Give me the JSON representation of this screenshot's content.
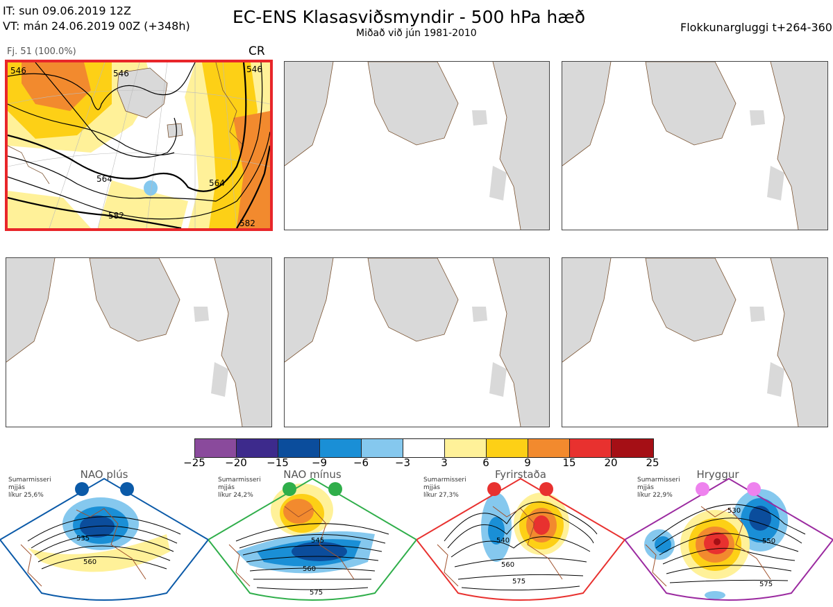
{
  "header": {
    "init_time": "IT: sun 09.06.2019 12Z",
    "valid_time": "VT: mán 24.06.2019 00Z  (+348h)",
    "title": "EC-ENS Klasasviðsmyndir - 500 hPa hæð",
    "subtitle": "Miðað við jún 1981-2010",
    "window": "Flokkunargluggi t+264-360"
  },
  "panels": [
    {
      "label": "Fj. 51 (100.0%)",
      "tag": "CR",
      "selected": true,
      "contour_labels": [
        "546",
        "564",
        "582",
        "546",
        "564",
        "582",
        "546"
      ]
    },
    {
      "label": "",
      "tag": "",
      "selected": false
    },
    {
      "label": "",
      "tag": "",
      "selected": false
    },
    {
      "label": "",
      "tag": "",
      "selected": false
    },
    {
      "label": "",
      "tag": "",
      "selected": false
    },
    {
      "label": "",
      "tag": "",
      "selected": false
    }
  ],
  "colorbar": {
    "ticks": [
      "−25",
      "−20",
      "−15",
      "−9",
      "−6",
      "−3",
      "3",
      "6",
      "9",
      "15",
      "20",
      "25"
    ],
    "colors": [
      "#8a4a9c",
      "#3d2a8c",
      "#0b4d9c",
      "#1a8fd6",
      "#85c8ee",
      "#ffffff",
      "#fff199",
      "#fdd016",
      "#f28a2e",
      "#e8312f",
      "#a50f15"
    ]
  },
  "regimes": [
    {
      "name": "NAO plús",
      "color": "#0b5aa8",
      "info": [
        "Sumarmisseri",
        "mjjás",
        "líkur 25,6%"
      ],
      "contour_labels": [
        "535",
        "560"
      ]
    },
    {
      "name": "NAO mínus",
      "color": "#2fae4a",
      "info": [
        "Sumarmisseri",
        "mjjás",
        "líkur 24,2%"
      ],
      "contour_labels": [
        "545",
        "560",
        "575"
      ]
    },
    {
      "name": "Fyrirstaða",
      "color": "#e8312f",
      "info": [
        "Sumarmisseri",
        "mjjás",
        "líkur 27,3%"
      ],
      "contour_labels": [
        "540",
        "560",
        "575"
      ]
    },
    {
      "name": "Hryggur",
      "color": "#9b2aa0",
      "info": [
        "Sumarmisseri",
        "mjjás",
        "líkur 22,9%"
      ],
      "contour_labels": [
        "530",
        "550",
        "575"
      ]
    }
  ]
}
